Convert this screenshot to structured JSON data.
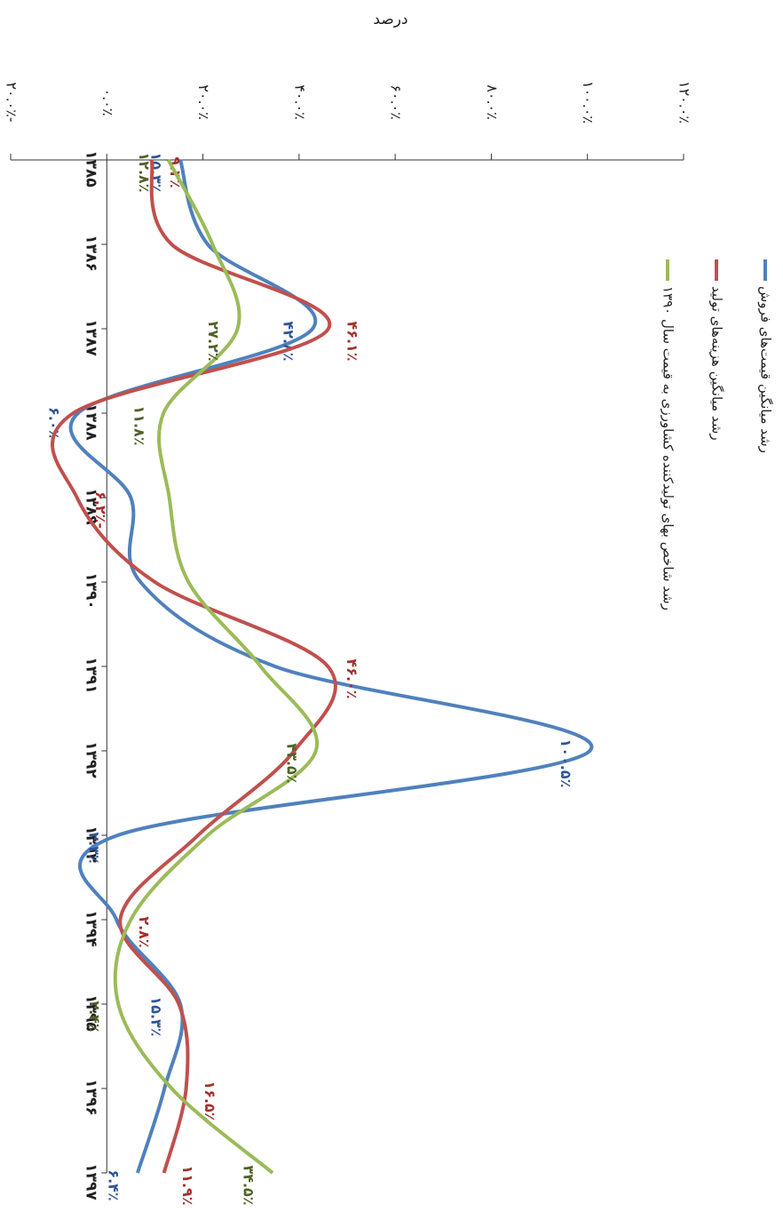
{
  "chart_data": {
    "type": "line",
    "ylabel": "درصد",
    "categories": [
      "۱۳۸۵",
      "۱۳۸۶",
      "۱۳۸۷",
      "۱۳۸۸",
      "۱۳۸۹",
      "۱۳۹۰",
      "۱۳۹۱",
      "۱۳۹۲",
      "۱۳۹۳",
      "۱۳۹۴",
      "۱۳۹۵",
      "۱۳۹۶",
      "۱۳۹۷"
    ],
    "ylim": [
      -20,
      120
    ],
    "yticks": [
      {
        "value": -20,
        "label": "-۲۰.۰٪"
      },
      {
        "value": 0,
        "label": "۰.۰٪"
      },
      {
        "value": 20,
        "label": "۲۰.۰٪"
      },
      {
        "value": 40,
        "label": "۴۰.۰٪"
      },
      {
        "value": 60,
        "label": "۶۰.۰٪"
      },
      {
        "value": 80,
        "label": "۸۰.۰٪"
      },
      {
        "value": 100,
        "label": "۱۰۰.۰٪"
      },
      {
        "value": 120,
        "label": "۱۲۰.۰٪"
      }
    ],
    "series": [
      {
        "name": "رشد میانگین قیمت‌های فروش",
        "color": "#4f81bd",
        "label_color": "#2e5597",
        "values": [
          15.3,
          21,
          42.8,
          -6.0,
          5,
          7,
          35,
          100.5,
          2.3,
          2,
          15.3,
          12,
          6.4
        ],
        "value_labels": [
          "۱۵.۳٪",
          null,
          "۴۲.۸٪",
          "-۶.۰٪",
          null,
          null,
          null,
          "۱۰۰.۵٪",
          "۲.۳٪",
          null,
          "۱۵.۳٪",
          null,
          "۶.۴٪"
        ]
      },
      {
        "name": "رشد میانگین هزینه‌های تولید",
        "color": "#c0504d",
        "label_color": "#a2302c",
        "values": [
          9.3,
          13.5,
          46.1,
          -7,
          -6.2,
          10,
          46.0,
          39,
          19,
          2.8,
          15,
          16.5,
          11.9
        ],
        "value_labels": [
          "۹.۳٪",
          null,
          "۴۶.۱٪",
          null,
          "-۶.۲٪",
          null,
          "۴۶.۰٪",
          null,
          null,
          "۲.۸٪",
          null,
          "۱۶.۵٪",
          "۱۱.۹٪"
        ]
      },
      {
        "name": "رشد شاخص بهای تولیدکننده کشاورزی به قیمت سال ۱۳۹۰",
        "color": "#9bbb59",
        "label_color": "#4f6228",
        "values": [
          12.8,
          22,
          27.2,
          11.8,
          13,
          17,
          32,
          43.5,
          21,
          5,
          2.4,
          13.5,
          34.5
        ],
        "value_labels": [
          "۱۲.۸٪",
          null,
          "۲۷.۲٪",
          "۱۱.۸٪",
          null,
          null,
          null,
          "۴۳.۵٪",
          null,
          null,
          "۲.۴٪",
          null,
          "۳۴.۵٪"
        ]
      }
    ]
  }
}
